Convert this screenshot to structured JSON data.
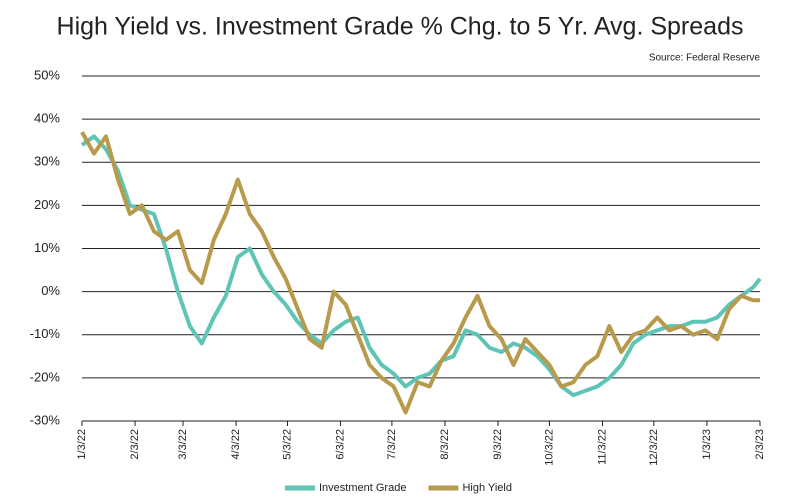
{
  "chart_data": {
    "type": "line",
    "title": "High Yield vs. Investment Grade % Chg. to 5 Yr. Avg. Spreads",
    "source": "Source: Federal Reserve",
    "x": [
      "1/3/22",
      "1/10/22",
      "1/17/22",
      "1/24/22",
      "1/31/22",
      "2/7/22",
      "2/14/22",
      "2/21/22",
      "2/28/22",
      "3/7/22",
      "3/14/22",
      "3/21/22",
      "3/28/22",
      "4/4/22",
      "4/11/22",
      "4/18/22",
      "4/25/22",
      "5/2/22",
      "5/9/22",
      "5/16/22",
      "5/23/22",
      "5/30/22",
      "6/6/22",
      "6/13/22",
      "6/20/22",
      "6/27/22",
      "7/4/22",
      "7/11/22",
      "7/18/22",
      "7/25/22",
      "8/1/22",
      "8/8/22",
      "8/15/22",
      "8/22/22",
      "8/29/22",
      "9/5/22",
      "9/12/22",
      "9/19/22",
      "9/26/22",
      "10/3/22",
      "10/10/22",
      "10/17/22",
      "10/24/22",
      "10/31/22",
      "11/7/22",
      "11/14/22",
      "11/21/22",
      "11/28/22",
      "12/5/22",
      "12/12/22",
      "12/19/22",
      "12/26/22",
      "1/2/23",
      "1/9/23",
      "1/16/23",
      "1/23/23",
      "1/30/23",
      "2/3/23"
    ],
    "series": [
      {
        "name": "Investment Grade",
        "color": "#5ec4b6",
        "values": [
          34,
          36,
          33,
          28,
          20,
          19,
          18,
          10,
          0,
          -8,
          -12,
          -6,
          -1,
          8,
          10,
          4,
          0,
          -3,
          -7,
          -10,
          -12,
          -9,
          -7,
          -6,
          -13,
          -17,
          -19,
          -22,
          -20,
          -19,
          -16,
          -15,
          -9,
          -10,
          -13,
          -14,
          -12,
          -13,
          -15,
          -18,
          -22,
          -24,
          -23,
          -22,
          -20,
          -17,
          -12,
          -10,
          -9,
          -8,
          -8,
          -7,
          -7,
          -6,
          -3,
          -1,
          1,
          3
        ]
      },
      {
        "name": "High Yield",
        "color": "#b89a4c",
        "values": [
          37,
          32,
          36,
          26,
          18,
          20,
          14,
          12,
          14,
          5,
          2,
          12,
          18,
          26,
          18,
          14,
          8,
          3,
          -4,
          -11,
          -13,
          0,
          -3,
          -10,
          -17,
          -20,
          -22,
          -28,
          -21,
          -22,
          -16,
          -12,
          -6,
          -1,
          -8,
          -11,
          -17,
          -11,
          -14,
          -17,
          -22,
          -21,
          -17,
          -15,
          -8,
          -14,
          -10,
          -9,
          -6,
          -9,
          -8,
          -10,
          -9,
          -11,
          -4,
          -1,
          -2,
          -2
        ]
      }
    ],
    "xticks": [
      "1/3/22",
      "2/3/22",
      "3/3/22",
      "4/3/22",
      "5/3/22",
      "6/3/22",
      "7/3/22",
      "8/3/22",
      "9/3/22",
      "10/3/22",
      "11/3/22",
      "12/3/22",
      "1/3/23",
      "2/3/23"
    ],
    "ylim": [
      -30,
      50
    ],
    "yticks": [
      {
        "value": -30,
        "label": "-30%"
      },
      {
        "value": -20,
        "label": "-20%"
      },
      {
        "value": -10,
        "label": "-10%"
      },
      {
        "value": 0,
        "label": "0%"
      },
      {
        "value": 10,
        "label": "10%"
      },
      {
        "value": 20,
        "label": "20%"
      },
      {
        "value": 30,
        "label": "30%"
      },
      {
        "value": 40,
        "label": "40%"
      },
      {
        "value": 50,
        "label": "50%"
      }
    ],
    "grid": true,
    "legend": "bottom"
  }
}
